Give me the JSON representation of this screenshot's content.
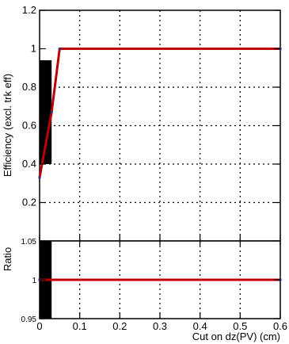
{
  "chart_data": [
    {
      "type": "line",
      "panel": "top",
      "xlabel": "Cut on dz(PV) (cm)",
      "ylabel": "Efficiency (excl. trk eff)",
      "xlim": [
        0,
        0.6
      ],
      "ylim": [
        0.0,
        1.2
      ],
      "x_ticks": [
        "0",
        "0.1",
        "0.2",
        "0.3",
        "0.4",
        "0.5",
        "0.6"
      ],
      "y_ticks": [
        {
          "value": 0.2,
          "label": "0.2"
        },
        {
          "value": 0.4,
          "label": "0.4"
        },
        {
          "value": 0.6,
          "label": "0.6"
        },
        {
          "value": 0.8,
          "label": "0.8"
        },
        {
          "value": 1.0,
          "label": "1"
        },
        {
          "value": 1.2,
          "label": "1.2"
        }
      ],
      "grid": true,
      "series": [
        {
          "color": "#c00000",
          "points": [
            {
              "x": 0.0,
              "y": 0.33
            },
            {
              "x": 0.03,
              "y": 0.67
            },
            {
              "x": 0.05,
              "y": 1.0
            },
            {
              "x": 0.6,
              "y": 1.0
            }
          ]
        }
      ],
      "error_band": {
        "x": [
          0.0,
          0.03
        ],
        "y_low": 0.4,
        "y_high": 0.94,
        "color": "#000000"
      }
    },
    {
      "type": "line",
      "panel": "bottom",
      "xlabel": "Cut on dz(PV) (cm)",
      "ylabel": "Ratio",
      "xlim": [
        0,
        0.6
      ],
      "ylim": [
        0.95,
        1.05
      ],
      "y_ticks": [
        {
          "value": 0.95,
          "label": "0.95"
        },
        {
          "value": 1.0,
          "label": "1"
        },
        {
          "value": 1.05,
          "label": "1.05"
        }
      ],
      "grid": true,
      "series": [
        {
          "color": "#c00000",
          "points": [
            {
              "x": 0.0,
              "y": 1.0
            },
            {
              "x": 0.6,
              "y": 1.0
            }
          ]
        }
      ],
      "error_band": {
        "x": [
          0.0,
          0.03
        ],
        "y_low": 0.95,
        "y_high": 1.05,
        "color": "#000000"
      }
    }
  ]
}
